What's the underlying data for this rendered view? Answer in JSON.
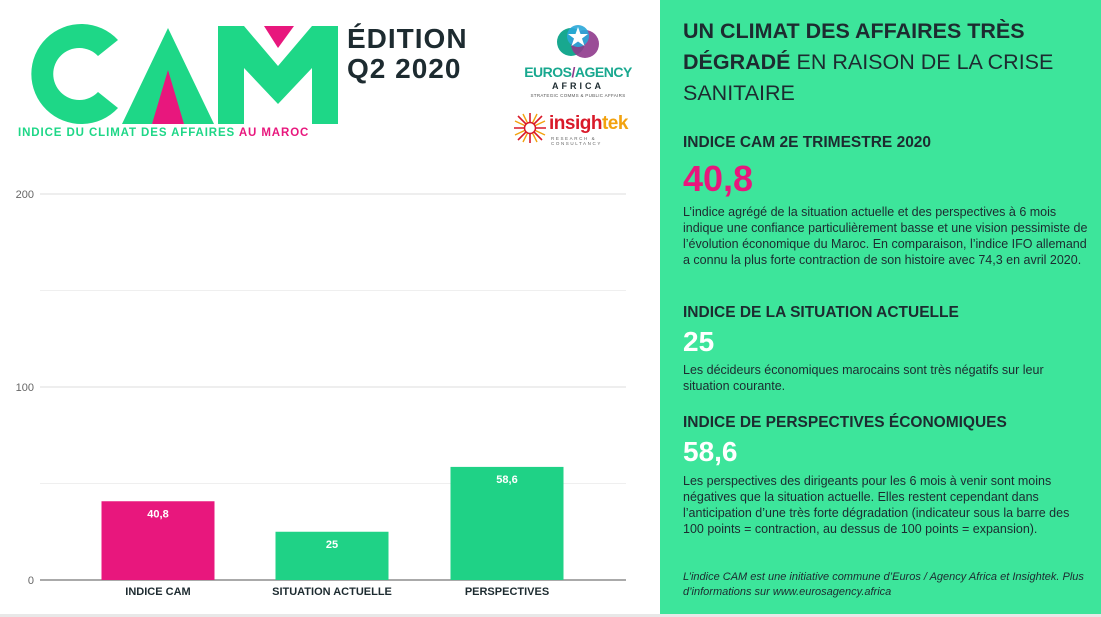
{
  "header": {
    "logo_text": "CAM",
    "tagline_main": "INDICE DU CLIMAT DES AFFAIRES",
    "tagline_accent": "AU MAROC",
    "edition_line1": "ÉDITION",
    "edition_line2": "Q2 2020",
    "partner1_name_a": "EUROS",
    "partner1_name_b": "AGENCY",
    "partner1_sub": "AFRICA",
    "partner1_tagline": "STRATEGIC COMMS & PUBLIC AFFAIRS",
    "partner2_name_a": "insigh",
    "partner2_name_b": "tek",
    "partner2_tagline": "RESEARCH & CONSULTANCY"
  },
  "colors": {
    "brand_green": "#1ed787",
    "panel_green": "#3de59b",
    "brand_pink": "#e8177d",
    "bar_green": "#1fd286",
    "dark_text": "#1d2b30"
  },
  "chart_data": {
    "type": "bar",
    "categories": [
      "INDICE CAM",
      "SITUATION ACTUELLE",
      "PERSPECTIVES"
    ],
    "values": [
      40.8,
      25,
      58.6
    ],
    "value_labels": [
      "40,8",
      "25",
      "58,6"
    ],
    "bar_colors": [
      "#e8177d",
      "#1fd286",
      "#1fd286"
    ],
    "yticks": [
      0,
      100,
      200
    ],
    "ylim": [
      0,
      200
    ],
    "grid": true,
    "legend": "none",
    "title": "",
    "xlabel": "",
    "ylabel": ""
  },
  "panel": {
    "title_bold": "UN CLIMAT DES AFFAIRES TRÈS DÉGRADÉ",
    "title_rest": " EN RAISON DE LA CRISE SANITAIRE",
    "sections": [
      {
        "heading": "INDICE CAM 2E TRIMESTRE 2020",
        "value": "40,8",
        "text": "L’indice agrégé de la situation actuelle et des perspectives à 6 mois indique une confiance particulièrement basse et une vision pessimiste de l’évolution économique du Maroc. En comparaison, l’indice IFO allemand a connu la plus forte contraction de son histoire avec 74,3 en avril 2020."
      },
      {
        "heading": "INDICE DE LA SITUATION ACTUELLE",
        "value": "25",
        "text": "Les décideurs économiques marocains sont très négatifs sur leur situation courante."
      },
      {
        "heading": "INDICE DE PERSPECTIVES ÉCONOMIQUES",
        "value": "58,6",
        "text": "Les perspectives des dirigeants pour les 6 mois à venir sont moins négatives que la situation actuelle. Elles restent cependant dans l’anticipation d’une très forte dégradation (indicateur sous la barre des 100 points = contraction, au dessus de 100 points = expansion)."
      }
    ],
    "footnote": "L’indice CAM est une initiative commune d’Euros / Agency Africa et Insightek. Plus d’informations sur www.eurosagency.africa"
  }
}
